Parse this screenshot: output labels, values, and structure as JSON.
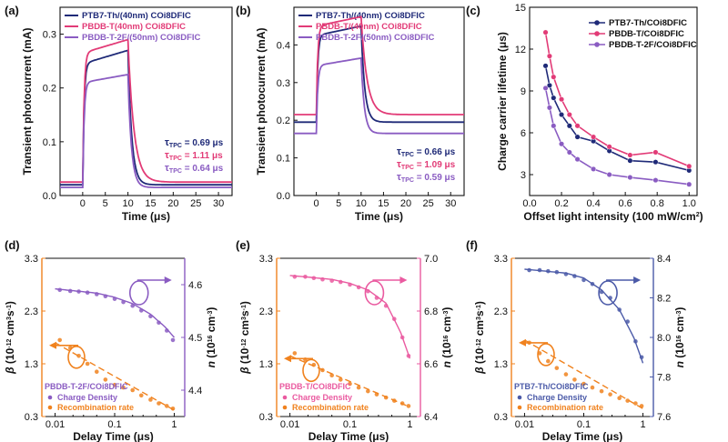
{
  "colors": {
    "navy": "#1f2a78",
    "pink": "#e23b77",
    "purple": "#8a5cc2",
    "orange": "#f0821e",
    "pinkLight": "#ea5aa0",
    "navyLight": "#4b5aa8"
  },
  "chart_data": [
    {
      "panel": "(a)",
      "type": "line",
      "xlabel": "Time (μs)",
      "ylabel": "Transient photocurrent (mA)",
      "xlim": [
        -5,
        33
      ],
      "ylim": [
        0.0,
        0.35
      ],
      "xticks": [
        0,
        5,
        10,
        15,
        20,
        25,
        30
      ],
      "yticks": [
        0.0,
        0.1,
        0.2,
        0.3
      ],
      "pulse_on": 0,
      "pulse_off": 10,
      "series": [
        {
          "name": "PTB7-Th/(40nm) COi8DFIC",
          "color": "navy",
          "baseline": 0.02,
          "plateau_start": 0.245,
          "plateau": 0.27,
          "tau": "0.69"
        },
        {
          "name": "PBDB-T(40nm) COi8DFIC",
          "color": "pink",
          "baseline": 0.025,
          "plateau_start": 0.265,
          "plateau": 0.29,
          "tau": "1.11"
        },
        {
          "name": "PBDB-T-2F/(50nm) COi8DFIC",
          "color": "purple",
          "baseline": 0.015,
          "plateau_start": 0.21,
          "plateau": 0.225,
          "tau": "0.64"
        }
      ],
      "tau_label": "τ",
      "tau_sub": "TPC",
      "tau_unit": "μs"
    },
    {
      "panel": "(b)",
      "type": "line",
      "xlabel": "Time (μs)",
      "ylabel": "Transient photocurrent (mA)",
      "xlim": [
        -5,
        33
      ],
      "ylim": [
        0.0,
        0.5
      ],
      "xticks": [
        0,
        5,
        10,
        15,
        20,
        25,
        30
      ],
      "yticks": [
        0.0,
        0.1,
        0.2,
        0.3,
        0.4
      ],
      "pulse_on": 0,
      "pulse_off": 10,
      "series": [
        {
          "name": "PTB7-Th/(40nm) COi8DFIC",
          "color": "navy",
          "baseline": 0.195,
          "plateau_start": 0.425,
          "plateau": 0.45,
          "tau": "0.66"
        },
        {
          "name": "PBDB-T/(40nm) COi8DFIC",
          "color": "pink",
          "baseline": 0.215,
          "plateau_start": 0.45,
          "plateau": 0.475,
          "tau": "1.09"
        },
        {
          "name": "PBDB-T-2F/(50nm) COi8DFIC",
          "color": "purple",
          "baseline": 0.165,
          "plateau_start": 0.345,
          "plateau": 0.365,
          "tau": "0.59"
        }
      ],
      "tau_label": "τ",
      "tau_sub": "TPC",
      "tau_unit": "μs"
    },
    {
      "panel": "(c)",
      "type": "line",
      "xlabel": "Offset light intensity (100 mW/cm",
      "xlabel_sup": "2",
      "xlabel_end": ")",
      "ylabel": "Charge carrier lifetime (μs)",
      "xlim": [
        0.0,
        1.05
      ],
      "ylim": [
        1.5,
        15
      ],
      "xticks": [
        0.0,
        0.2,
        0.4,
        0.6,
        0.8,
        1.0
      ],
      "yticks": [
        3,
        6,
        9,
        12,
        15
      ],
      "series": [
        {
          "name": "PTB7-Th/COi8DFIC",
          "color": "navy",
          "x": [
            0.1,
            0.125,
            0.15,
            0.2,
            0.25,
            0.3,
            0.4,
            0.5,
            0.63,
            0.79,
            1.0
          ],
          "y": [
            10.8,
            9.4,
            8.5,
            7.3,
            6.5,
            5.7,
            5.4,
            4.7,
            4.0,
            3.9,
            3.3
          ]
        },
        {
          "name": "PBDB-T/COi8DFIC",
          "color": "pink",
          "x": [
            0.1,
            0.125,
            0.15,
            0.2,
            0.25,
            0.3,
            0.4,
            0.5,
            0.63,
            0.79,
            1.0
          ],
          "y": [
            13.2,
            11.5,
            10.0,
            8.4,
            7.3,
            6.5,
            5.7,
            5.0,
            4.4,
            4.6,
            3.6
          ]
        },
        {
          "name": "PBDB-T-2F/COi8DFIC",
          "color": "purple",
          "x": [
            0.1,
            0.125,
            0.15,
            0.2,
            0.25,
            0.3,
            0.4,
            0.5,
            0.63,
            0.79,
            1.0
          ],
          "y": [
            9.2,
            7.8,
            6.5,
            5.2,
            4.6,
            4.1,
            3.4,
            3.0,
            2.8,
            2.6,
            2.3
          ]
        }
      ]
    },
    {
      "panel": "(d)",
      "type": "scatter",
      "xlabel": "Delay Time (μs)",
      "xlog": true,
      "xlim": [
        0.006,
        1.5
      ],
      "xticks": [
        0.01,
        0.1,
        1
      ],
      "xticklabels": [
        "0.01",
        "0.1",
        "1"
      ],
      "ylabel_left": "β (10⁻¹² cm³s⁻¹)",
      "ylim_left": [
        0.3,
        3.3
      ],
      "yticks_left": [
        0.3,
        1.3,
        2.3,
        3.3
      ],
      "ylabel_right": "n (10¹⁶ cm⁻³)",
      "ylim_right": [
        4.35,
        4.65
      ],
      "yticks_right": [
        4.4,
        4.5,
        4.6
      ],
      "right_color": "purple",
      "left_color": "orange",
      "density_x": [
        0.012,
        0.018,
        0.025,
        0.035,
        0.05,
        0.07,
        0.1,
        0.14,
        0.2,
        0.28,
        0.4,
        0.55,
        0.75,
        0.95
      ],
      "density_y": [
        4.59,
        4.588,
        4.587,
        4.585,
        4.582,
        4.578,
        4.573,
        4.567,
        4.56,
        4.551,
        4.54,
        4.528,
        4.513,
        4.495
      ],
      "rate_x": [
        0.012,
        0.018,
        0.025,
        0.035,
        0.05,
        0.07,
        0.1,
        0.14,
        0.2,
        0.28,
        0.4,
        0.55,
        0.75,
        0.95
      ],
      "rate_y": [
        1.75,
        1.6,
        1.45,
        1.3,
        1.15,
        1.0,
        0.9,
        0.85,
        0.8,
        0.7,
        0.62,
        0.55,
        0.5,
        0.45
      ],
      "fit_density": [
        [
          0.01,
          4.592
        ],
        [
          0.05,
          4.584
        ],
        [
          0.1,
          4.576
        ],
        [
          0.2,
          4.564
        ],
        [
          0.4,
          4.544
        ],
        [
          0.7,
          4.52
        ],
        [
          1.0,
          4.5
        ]
      ],
      "fit_rate": [
        [
          0.01,
          1.7
        ],
        [
          1.0,
          0.42
        ]
      ],
      "legend_title": "PBDB-T-2F/COi8DFIC",
      "legend_density": "Charge Density",
      "legend_rate": "Recombination rate"
    },
    {
      "panel": "(e)",
      "type": "scatter",
      "xlabel": "Delay Time (μs)",
      "xlog": true,
      "xlim": [
        0.006,
        1.5
      ],
      "xticks": [
        0.01,
        0.1,
        1
      ],
      "xticklabels": [
        "0.01",
        "0.1",
        "1"
      ],
      "ylabel_left": "β (10⁻¹² cm³s⁻¹)",
      "ylim_left": [
        0.3,
        3.3
      ],
      "yticks_left": [
        0.3,
        1.3,
        2.3,
        3.3
      ],
      "ylabel_right": "n (10¹⁶ cm⁻³)",
      "ylim_right": [
        6.4,
        7.0
      ],
      "yticks_right": [
        6.4,
        6.6,
        6.8,
        7.0
      ],
      "right_color": "pinkLight",
      "left_color": "orange",
      "density_x": [
        0.012,
        0.018,
        0.025,
        0.035,
        0.05,
        0.07,
        0.1,
        0.14,
        0.2,
        0.28,
        0.4,
        0.55,
        0.75,
        0.95
      ],
      "density_y": [
        6.93,
        6.93,
        6.925,
        6.92,
        6.915,
        6.91,
        6.9,
        6.89,
        6.875,
        6.85,
        6.82,
        6.77,
        6.7,
        6.63
      ],
      "rate_x": [
        0.012,
        0.018,
        0.025,
        0.035,
        0.05,
        0.07,
        0.1,
        0.14,
        0.2,
        0.28,
        0.4,
        0.55,
        0.75,
        0.95
      ],
      "rate_y": [
        1.5,
        1.38,
        1.28,
        1.18,
        1.08,
        1.0,
        0.92,
        0.85,
        0.78,
        0.72,
        0.66,
        0.6,
        0.55,
        0.5
      ],
      "fit_density": [
        [
          0.01,
          6.935
        ],
        [
          0.05,
          6.92
        ],
        [
          0.1,
          6.905
        ],
        [
          0.2,
          6.88
        ],
        [
          0.4,
          6.83
        ],
        [
          0.7,
          6.72
        ],
        [
          1.0,
          6.62
        ]
      ],
      "fit_rate": [
        [
          0.01,
          1.45
        ],
        [
          1.0,
          0.48
        ]
      ],
      "legend_title": "PBDB-T/COi8DFIC",
      "legend_density": "Charge Density",
      "legend_rate": "Recombination rate"
    },
    {
      "panel": "(f)",
      "type": "scatter",
      "xlabel": "Delay Time (μs)",
      "xlog": true,
      "xlim": [
        0.006,
        1.5
      ],
      "xticks": [
        0.01,
        0.1,
        1
      ],
      "xticklabels": [
        "0.01",
        "0.1",
        "1"
      ],
      "ylabel_left": "β (10⁻¹² cm³s⁻¹)",
      "ylim_left": [
        0.3,
        3.3
      ],
      "yticks_left": [
        0.3,
        1.3,
        2.3,
        3.3
      ],
      "ylabel_right": "n (10¹⁶ cm⁻³)",
      "ylim_right": [
        7.6,
        8.4
      ],
      "yticks_right": [
        7.6,
        7.8,
        8.0,
        8.2,
        8.4
      ],
      "right_color": "navyLight",
      "left_color": "orange",
      "density_x": [
        0.012,
        0.018,
        0.025,
        0.035,
        0.05,
        0.07,
        0.1,
        0.14,
        0.2,
        0.28,
        0.4,
        0.55,
        0.75,
        0.95
      ],
      "density_y": [
        8.34,
        8.34,
        8.335,
        8.33,
        8.32,
        8.31,
        8.29,
        8.27,
        8.23,
        8.2,
        8.14,
        8.08,
        7.98,
        7.9
      ],
      "rate_x": [
        0.012,
        0.018,
        0.025,
        0.035,
        0.05,
        0.07,
        0.1,
        0.14,
        0.2,
        0.28,
        0.4,
        0.55,
        0.75,
        0.95
      ],
      "rate_y": [
        1.7,
        1.5,
        1.35,
        1.22,
        1.1,
        1.0,
        0.92,
        0.85,
        0.78,
        0.72,
        0.65,
        0.6,
        0.55,
        0.5
      ],
      "fit_density": [
        [
          0.01,
          8.345
        ],
        [
          0.05,
          8.325
        ],
        [
          0.1,
          8.3
        ],
        [
          0.2,
          8.24
        ],
        [
          0.4,
          8.14
        ],
        [
          0.7,
          8.0
        ],
        [
          1.0,
          7.87
        ]
      ],
      "fit_rate": [
        [
          0.01,
          1.75
        ],
        [
          1.0,
          0.45
        ]
      ],
      "legend_title": "PTB7-Th/COi8DFIC",
      "legend_density": "Charge Density",
      "legend_rate": "Recombination rate"
    }
  ]
}
